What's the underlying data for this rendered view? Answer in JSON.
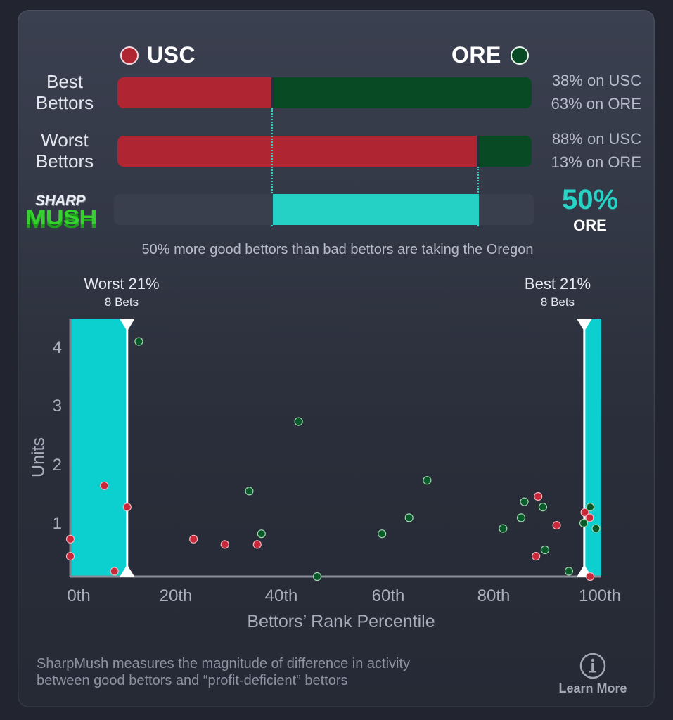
{
  "header": {
    "left_team": {
      "label": "USC",
      "color": "#b02532"
    },
    "right_team": {
      "label": "ORE",
      "color": "#074a23"
    }
  },
  "rows": [
    {
      "label_line1": "Best",
      "label_line2": "Bettors",
      "usc_pct": 38,
      "ore_pct": 63,
      "usc_text": "38% on USC",
      "ore_text": "63% on ORE"
    },
    {
      "label_line1": "Worst",
      "label_line2": "Bettors",
      "usc_pct": 88,
      "ore_pct": 13,
      "usc_text": "88% on USC",
      "ore_text": "13% on ORE"
    }
  ],
  "sharpmush": {
    "logo_top": "SHARP",
    "logo_bottom": "MUSH",
    "value": "50%",
    "team": "ORE",
    "accent_color": "#25d1c4",
    "summary": "50% more good bettors than bad bettors are taking the Oregon"
  },
  "zones": {
    "worst": {
      "label": "Worst 21%",
      "sub": "8 Bets"
    },
    "best": {
      "label": "Best 21%",
      "sub": "8 Bets"
    }
  },
  "footer": {
    "description_line1": "SharpMush measures the magnitude of difference in activity",
    "description_line2": "between good bettors and “profit-deficient” bettors",
    "learn_more": "Learn More",
    "icon": "info-icon"
  },
  "chart_data": {
    "type": "scatter",
    "title": "",
    "xlabel": "Bettors’ Rank Percentile",
    "ylabel": "Units",
    "xlim": [
      0,
      100
    ],
    "ylim": [
      0,
      4.4
    ],
    "x_ticks": [
      "0th",
      "20th",
      "40th",
      "60th",
      "80th",
      "100th"
    ],
    "y_ticks": [
      "1",
      "2",
      "3",
      "4"
    ],
    "grid": false,
    "shaded_regions": [
      {
        "name": "Worst 21%",
        "x_range": [
          0,
          10.7
        ],
        "color": "#0ccfcf"
      },
      {
        "name": "Best 21%",
        "x_range": [
          96.8,
          100
        ],
        "color": "#0ccfcf"
      }
    ],
    "series": [
      {
        "name": "USC",
        "color": "#c8283a",
        "points": [
          [
            0,
            0.7
          ],
          [
            0,
            0.38
          ],
          [
            6.4,
            1.7
          ],
          [
            8.3,
            0.1
          ],
          [
            10.7,
            1.3
          ],
          [
            23.2,
            0.7
          ],
          [
            29.1,
            0.6
          ],
          [
            35.2,
            0.6
          ],
          [
            88.1,
            1.5
          ],
          [
            87.7,
            0.38
          ],
          [
            91.6,
            0.96
          ],
          [
            96.9,
            1.2
          ],
          [
            97.8,
            1.1
          ],
          [
            97.9,
            0.0
          ]
        ]
      },
      {
        "name": "ORE",
        "color": "#0a5a2c",
        "points": [
          [
            12.9,
            4.4
          ],
          [
            33.7,
            1.6
          ],
          [
            36.0,
            0.8
          ],
          [
            43.0,
            2.9
          ],
          [
            46.5,
            0.0
          ],
          [
            58.7,
            0.8
          ],
          [
            63.8,
            1.1
          ],
          [
            67.2,
            1.8
          ],
          [
            81.5,
            0.9
          ],
          [
            84.9,
            1.1
          ],
          [
            85.5,
            1.4
          ],
          [
            89.0,
            1.3
          ],
          [
            89.4,
            0.5
          ],
          [
            93.9,
            0.1
          ],
          [
            96.7,
            1.0
          ],
          [
            97.9,
            1.3
          ],
          [
            99.0,
            0.9
          ]
        ]
      }
    ]
  }
}
